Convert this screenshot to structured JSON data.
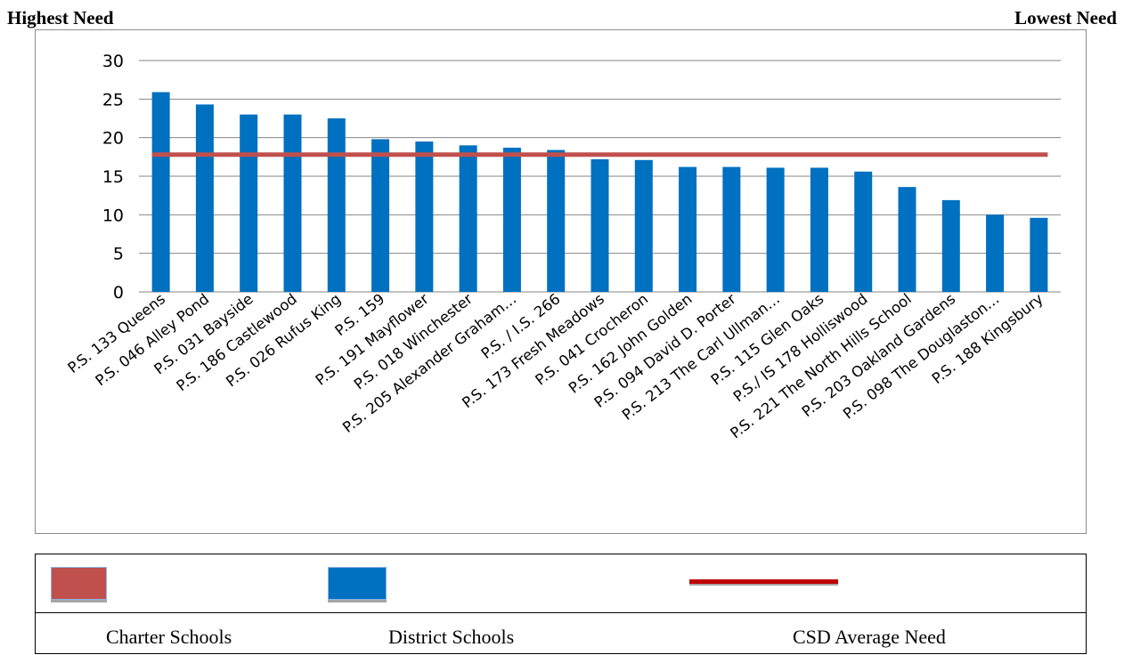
{
  "header": {
    "left": "Highest Need",
    "right": "Lowest Need"
  },
  "legend": {
    "charter_label": "Charter Schools",
    "district_label": "District Schools",
    "average_label": "CSD Average Need",
    "colors": {
      "charter": "#c0504d",
      "district": "#0070c0",
      "average": "#c0504d"
    }
  },
  "chart_data": {
    "type": "bar",
    "categories": [
      "P.S. 133 Queens",
      "P.S. 046 Alley Pond",
      "P.S. 031 Bayside",
      "P.S. 186 Castlewood",
      "P.S. 026 Rufus King",
      "P.S. 159",
      "P.S. 191 Mayflower",
      "P.S. 018 Winchester",
      "P.S. 205 Alexander Graham…",
      "P.S. / I.S. 266",
      "P.S. 173 Fresh Meadows",
      "P.S. 041 Crocheron",
      "P.S. 162 John Golden",
      "P.S. 094 David D. Porter",
      "P.S. 213 The Carl Ullman…",
      "P.S. 115 Glen Oaks",
      "P.S./ IS 178 Holliswood",
      "P.S. 221 The North Hills School",
      "P.S. 203 Oakland Gardens",
      "P.S. 098 The Douglaston…",
      "P.S. 188 Kingsbury"
    ],
    "series": [
      {
        "values": [
          25.9,
          24.3,
          23.0,
          23.0,
          22.5,
          19.8,
          19.5,
          19.0,
          18.7,
          18.4,
          17.2,
          17.1,
          16.2,
          16.2,
          16.1,
          16.1,
          15.6,
          13.6,
          11.9,
          10.0,
          9.6
        ],
        "color": "#0070c0"
      }
    ],
    "average_line": {
      "value": 17.8,
      "color": "#c0504d"
    },
    "yticks": [
      "0",
      "5",
      "10",
      "15",
      "20",
      "25",
      "30"
    ],
    "ylim": [
      0,
      30
    ],
    "grid": true,
    "title": "",
    "xlabel": "",
    "ylabel": ""
  }
}
